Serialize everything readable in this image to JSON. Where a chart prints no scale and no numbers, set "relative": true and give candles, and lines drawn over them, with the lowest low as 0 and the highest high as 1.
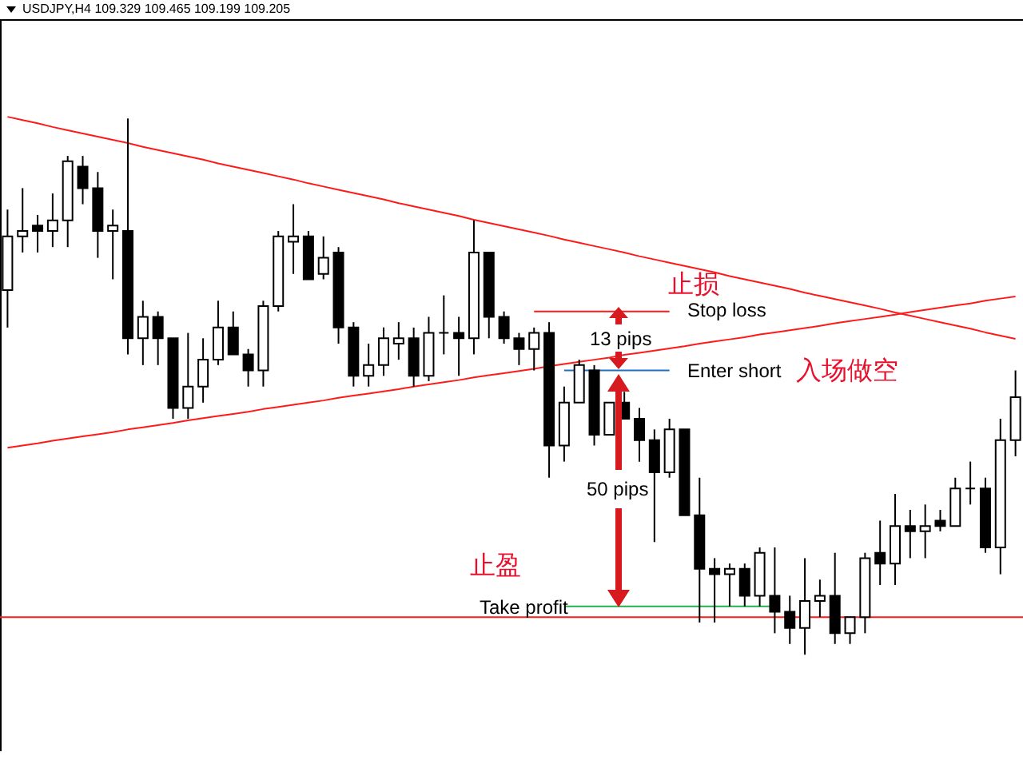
{
  "chart_data": {
    "type": "candlestick",
    "title": "USDJPY,H4  109.329 109.465 109.199 109.205",
    "relative": true,
    "categories": [
      null,
      null,
      null,
      null,
      null,
      null,
      null,
      null,
      null,
      null,
      null,
      null,
      null,
      null,
      null,
      null,
      null,
      null,
      null,
      null,
      null,
      null,
      null,
      null,
      null,
      null,
      null,
      null,
      null,
      null,
      null,
      null,
      null,
      null,
      null,
      null,
      null,
      null,
      null,
      null,
      null,
      null,
      null,
      null,
      null,
      null,
      null,
      null,
      null,
      null,
      null,
      null,
      null,
      null,
      null,
      null,
      null,
      null,
      null,
      null,
      null,
      null,
      null,
      null,
      null,
      null,
      null,
      null
    ],
    "ohlc": [
      [
        0.68,
        0.83,
        0.61,
        0.78
      ],
      [
        0.78,
        0.87,
        0.75,
        0.79
      ],
      [
        0.8,
        0.82,
        0.75,
        0.79
      ],
      [
        0.79,
        0.86,
        0.76,
        0.81
      ],
      [
        0.81,
        0.93,
        0.76,
        0.92
      ],
      [
        0.91,
        0.93,
        0.84,
        0.87
      ],
      [
        0.87,
        0.9,
        0.74,
        0.79
      ],
      [
        0.79,
        0.83,
        0.7,
        0.8
      ],
      [
        0.79,
        1.0,
        0.56,
        0.59
      ],
      [
        0.59,
        0.66,
        0.54,
        0.63
      ],
      [
        0.63,
        0.64,
        0.54,
        0.59
      ],
      [
        0.59,
        0.59,
        0.44,
        0.46
      ],
      [
        0.46,
        0.6,
        0.44,
        0.5
      ],
      [
        0.5,
        0.59,
        0.47,
        0.55
      ],
      [
        0.55,
        0.66,
        0.54,
        0.61
      ],
      [
        0.61,
        0.64,
        0.56,
        0.56
      ],
      [
        0.56,
        0.57,
        0.5,
        0.53
      ],
      [
        0.53,
        0.66,
        0.5,
        0.65
      ],
      [
        0.65,
        0.79,
        0.64,
        0.78
      ],
      [
        0.77,
        0.84,
        0.71,
        0.78
      ],
      [
        0.78,
        0.79,
        0.7,
        0.7
      ],
      [
        0.71,
        0.78,
        0.7,
        0.74
      ],
      [
        0.75,
        0.76,
        0.58,
        0.61
      ],
      [
        0.61,
        0.62,
        0.5,
        0.52
      ],
      [
        0.52,
        0.58,
        0.5,
        0.54
      ],
      [
        0.54,
        0.61,
        0.52,
        0.59
      ],
      [
        0.58,
        0.62,
        0.55,
        0.59
      ],
      [
        0.59,
        0.61,
        0.5,
        0.52
      ],
      [
        0.52,
        0.63,
        0.51,
        0.6
      ],
      [
        0.6,
        0.67,
        0.56,
        0.6
      ],
      [
        0.6,
        0.63,
        0.52,
        0.59
      ],
      [
        0.59,
        0.81,
        0.56,
        0.75
      ],
      [
        0.75,
        0.75,
        0.59,
        0.63
      ],
      [
        0.63,
        0.64,
        0.58,
        0.59
      ],
      [
        0.59,
        0.6,
        0.54,
        0.57
      ],
      [
        0.57,
        0.61,
        0.53,
        0.6
      ],
      [
        0.6,
        0.62,
        0.33,
        0.39
      ],
      [
        0.39,
        0.5,
        0.36,
        0.47
      ],
      [
        0.47,
        0.55,
        0.47,
        0.54
      ],
      [
        0.53,
        0.54,
        0.39,
        0.41
      ],
      [
        0.41,
        0.47,
        0.41,
        0.47
      ],
      [
        0.47,
        0.49,
        0.44,
        0.44
      ],
      [
        0.44,
        0.46,
        0.36,
        0.4
      ],
      [
        0.4,
        0.42,
        0.21,
        0.34
      ],
      [
        0.34,
        0.44,
        0.33,
        0.42
      ],
      [
        0.42,
        0.42,
        0.26,
        0.26
      ],
      [
        0.26,
        0.33,
        0.06,
        0.16
      ],
      [
        0.16,
        0.18,
        0.06,
        0.15
      ],
      [
        0.15,
        0.17,
        0.09,
        0.16
      ],
      [
        0.16,
        0.17,
        0.09,
        0.11
      ],
      [
        0.11,
        0.2,
        0.09,
        0.19
      ],
      [
        0.11,
        0.2,
        0.04,
        0.08
      ],
      [
        0.08,
        0.11,
        0.02,
        0.05
      ],
      [
        0.05,
        0.18,
        0.0,
        0.1
      ],
      [
        0.1,
        0.14,
        0.07,
        0.11
      ],
      [
        0.11,
        0.19,
        0.02,
        0.04
      ],
      [
        0.04,
        0.07,
        0.02,
        0.07
      ],
      [
        0.07,
        0.19,
        0.04,
        0.18
      ],
      [
        0.19,
        0.25,
        0.13,
        0.17
      ],
      [
        0.17,
        0.3,
        0.13,
        0.24
      ],
      [
        0.24,
        0.27,
        0.18,
        0.23
      ],
      [
        0.23,
        0.28,
        0.18,
        0.24
      ],
      [
        0.25,
        0.27,
        0.23,
        0.24
      ],
      [
        0.24,
        0.33,
        0.24,
        0.31
      ],
      [
        0.31,
        0.36,
        0.28,
        0.31
      ],
      [
        0.31,
        0.33,
        0.19,
        0.2
      ],
      [
        0.2,
        0.44,
        0.15,
        0.4
      ],
      [
        0.4,
        0.53,
        0.37,
        0.48
      ]
    ],
    "series": [
      {
        "type": "line",
        "color": "#ff1a1a",
        "values": [
          1.003,
          0.997,
          0.991,
          0.984,
          0.978,
          0.972,
          0.966,
          0.96,
          0.954,
          0.947,
          0.941,
          0.935,
          0.929,
          0.923,
          0.916,
          0.91,
          0.904,
          0.898,
          0.892,
          0.886,
          0.879,
          0.873,
          0.867,
          0.861,
          0.855,
          0.849,
          0.842,
          0.836,
          0.83,
          0.824,
          0.818,
          0.811,
          0.805,
          0.799,
          0.793,
          0.787,
          0.781,
          0.774,
          0.768,
          0.762,
          0.756,
          0.75,
          0.743,
          0.737,
          0.731,
          0.725,
          0.719,
          0.713,
          0.706,
          0.7,
          0.694,
          0.688,
          0.682,
          0.675,
          0.669,
          0.663,
          0.657,
          0.651,
          0.645,
          0.638,
          0.632,
          0.626,
          0.62,
          0.614,
          0.608,
          0.601,
          0.595,
          0.589
        ]
      },
      {
        "type": "line",
        "color": "#ff1a1a",
        "values": [
          0.386,
          0.39,
          0.394,
          0.399,
          0.403,
          0.407,
          0.411,
          0.415,
          0.42,
          0.424,
          0.428,
          0.432,
          0.437,
          0.441,
          0.445,
          0.449,
          0.453,
          0.458,
          0.462,
          0.466,
          0.47,
          0.474,
          0.479,
          0.483,
          0.487,
          0.491,
          0.495,
          0.5,
          0.504,
          0.508,
          0.512,
          0.517,
          0.521,
          0.525,
          0.529,
          0.533,
          0.538,
          0.542,
          0.546,
          0.55,
          0.554,
          0.559,
          0.563,
          0.567,
          0.571,
          0.575,
          0.58,
          0.584,
          0.588,
          0.592,
          0.597,
          0.601,
          0.605,
          0.609,
          0.613,
          0.618,
          0.622,
          0.626,
          0.63,
          0.634,
          0.639,
          0.643,
          0.647,
          0.651,
          0.655,
          0.66,
          0.664,
          0.668
        ]
      },
      {
        "type": "line",
        "color": "#ff1a1a",
        "values": [
          null,
          null,
          null,
          null,
          null,
          null,
          null,
          null,
          null,
          null,
          null,
          null,
          null,
          null,
          null,
          null,
          null,
          null,
          null,
          null,
          null,
          null,
          null,
          null,
          null,
          null,
          null,
          null,
          null,
          null,
          null,
          null,
          null,
          null,
          null,
          0.64,
          0.64,
          0.64,
          0.64,
          0.64,
          0.64,
          0.64,
          0.64,
          0.64,
          0.64,
          null,
          null,
          null,
          null,
          null,
          null,
          null,
          null,
          null,
          null,
          null,
          null,
          null,
          null,
          null,
          null,
          null,
          null,
          null,
          null,
          null,
          null,
          null
        ]
      },
      {
        "type": "line",
        "color": "#1f6fc5",
        "values": [
          null,
          null,
          null,
          null,
          null,
          null,
          null,
          null,
          null,
          null,
          null,
          null,
          null,
          null,
          null,
          null,
          null,
          null,
          null,
          null,
          null,
          null,
          null,
          null,
          null,
          null,
          null,
          null,
          null,
          null,
          null,
          null,
          null,
          null,
          null,
          null,
          null,
          0.53,
          0.53,
          0.53,
          0.53,
          0.53,
          0.53,
          0.53,
          0.53,
          null,
          null,
          null,
          null,
          null,
          null,
          null,
          null,
          null,
          null,
          null,
          null,
          null,
          null,
          null,
          null,
          null,
          null,
          null,
          null,
          null,
          null,
          null
        ]
      },
      {
        "type": "line",
        "color": "#22b14c",
        "values": [
          null,
          null,
          null,
          null,
          null,
          null,
          null,
          null,
          null,
          null,
          null,
          null,
          null,
          null,
          null,
          null,
          null,
          null,
          null,
          null,
          null,
          null,
          null,
          null,
          null,
          null,
          null,
          null,
          null,
          null,
          null,
          null,
          null,
          null,
          null,
          null,
          null,
          0.09,
          0.09,
          0.09,
          0.09,
          0.09,
          0.09,
          0.09,
          0.09,
          0.09,
          0.09,
          0.09,
          0.09,
          0.09,
          0.09,
          0.09,
          null,
          null,
          null,
          null,
          null,
          null,
          null,
          null,
          null,
          null,
          null,
          null,
          null,
          null,
          null,
          null
        ]
      }
    ],
    "ref_lines": [
      {
        "axis": "y",
        "value": 0.07,
        "color": "#ff1a1a"
      }
    ],
    "annotations": [
      "止损",
      "Stop loss",
      "13 pips",
      "Enter short",
      "入场做空",
      "50 pips",
      "止盈",
      "Take profit"
    ]
  }
}
